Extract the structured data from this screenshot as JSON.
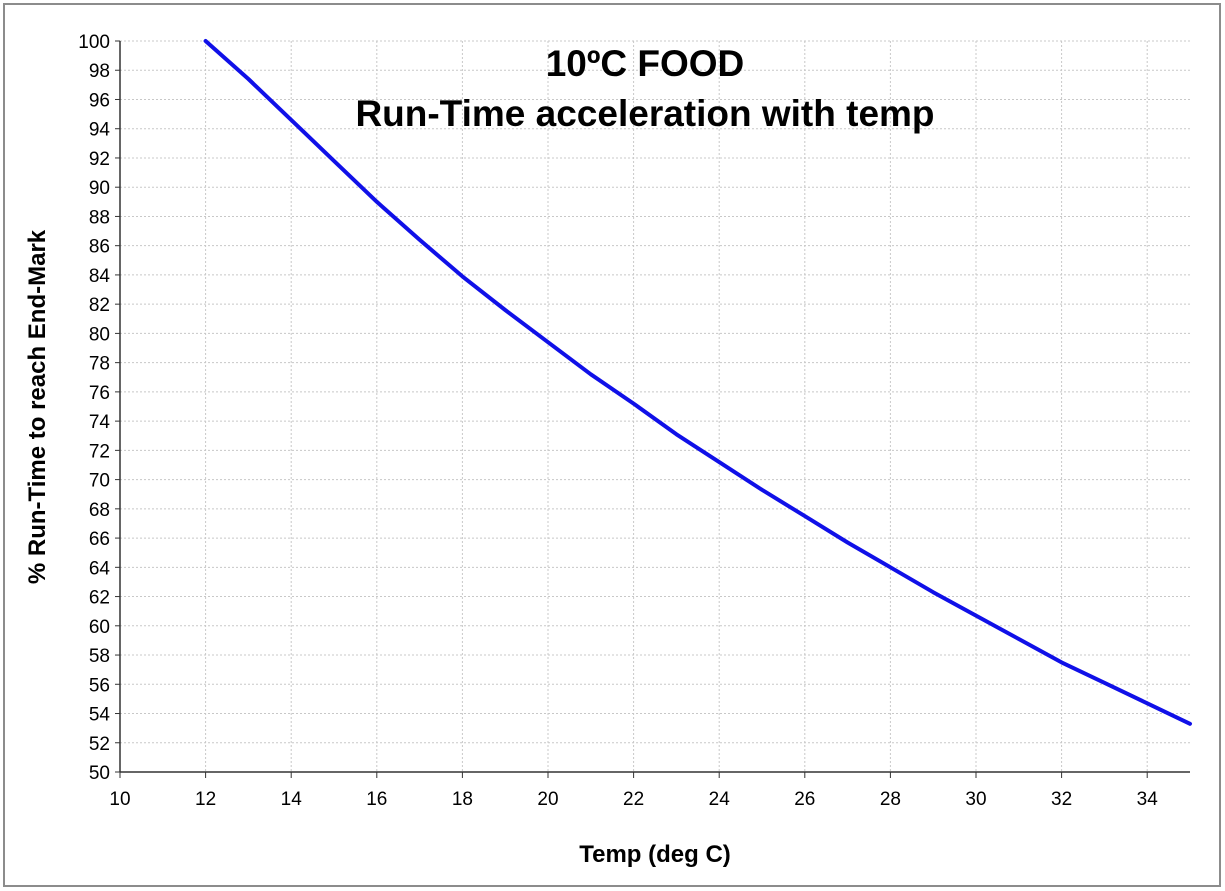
{
  "chart_data": {
    "type": "line",
    "title_lines": [
      "10ºC FOOD",
      "Run-Time acceleration with temp"
    ],
    "xlabel": "Temp (deg C)",
    "ylabel": "% Run-Time to reach End-Mark",
    "xlim": [
      10,
      35
    ],
    "ylim": [
      50,
      100
    ],
    "x_ticks": [
      10,
      12,
      14,
      16,
      18,
      20,
      22,
      24,
      26,
      28,
      30,
      32,
      34
    ],
    "y_ticks": [
      50,
      52,
      54,
      56,
      58,
      60,
      62,
      64,
      66,
      68,
      70,
      72,
      74,
      76,
      78,
      80,
      82,
      84,
      86,
      88,
      90,
      92,
      94,
      96,
      98,
      100
    ],
    "grid": true,
    "series": [
      {
        "color": "#1010e8",
        "x": [
          12,
          13,
          14,
          15,
          16,
          17,
          18,
          19,
          20,
          21,
          22,
          23,
          24,
          25,
          26,
          27,
          28,
          29,
          30,
          31,
          32,
          33,
          34,
          35
        ],
        "y": [
          100.0,
          97.4,
          94.6,
          91.8,
          89.0,
          86.4,
          83.9,
          81.6,
          79.4,
          77.2,
          75.2,
          73.1,
          71.2,
          69.3,
          67.5,
          65.7,
          64.0,
          62.3,
          60.7,
          59.1,
          57.5,
          56.1,
          54.7,
          53.3
        ]
      }
    ]
  }
}
